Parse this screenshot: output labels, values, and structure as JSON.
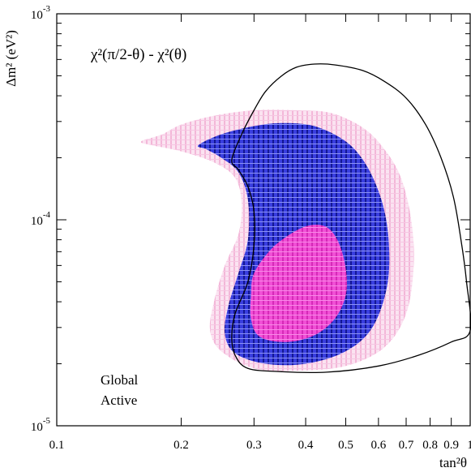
{
  "chart_data": {
    "type": "contour",
    "annotation": "χ²(π/2-θ) - χ²(θ)",
    "corner_label": [
      "Global",
      "Active"
    ],
    "xlabel": "tan²θ",
    "ylabel": "Δm² (eV²)",
    "x_scale": "log",
    "y_scale": "log",
    "xlim": [
      0.1,
      1.0
    ],
    "ylim": [
      1e-05,
      0.001
    ],
    "x_ticks": [
      {
        "value": 0.1,
        "label": "0.1"
      },
      {
        "value": 0.2,
        "label": "0.2"
      },
      {
        "value": 0.3,
        "label": "0.3"
      },
      {
        "value": 0.4,
        "label": "0.4"
      },
      {
        "value": 0.5,
        "label": "0.5"
      },
      {
        "value": 0.6,
        "label": "0.6"
      },
      {
        "value": 0.7,
        "label": "0.7"
      },
      {
        "value": 0.8,
        "label": "0.8"
      },
      {
        "value": 0.9,
        "label": "0.9"
      },
      {
        "value": 1.0,
        "label": "1"
      }
    ],
    "y_ticks": [
      {
        "value": 1e-05,
        "base": "10",
        "exp": "-5"
      },
      {
        "value": 0.0001,
        "base": "10",
        "exp": "-4"
      },
      {
        "value": 0.001,
        "base": "10",
        "exp": "-3"
      }
    ],
    "grid": false,
    "regions": [
      {
        "fill": "#f7c6e0",
        "points": [
          [
            0.16,
            0.00024
          ],
          [
            0.18,
            0.00026
          ],
          [
            0.2,
            0.00029
          ],
          [
            0.24,
            0.00032
          ],
          [
            0.3,
            0.00034
          ],
          [
            0.38,
            0.00034
          ],
          [
            0.46,
            0.00033
          ],
          [
            0.55,
            0.00028
          ],
          [
            0.62,
            0.00022
          ],
          [
            0.68,
            0.00016
          ],
          [
            0.72,
            0.0001
          ],
          [
            0.73,
            6e-05
          ],
          [
            0.7,
            3.5e-05
          ],
          [
            0.62,
            2.4e-05
          ],
          [
            0.5,
            1.95e-05
          ],
          [
            0.38,
            1.85e-05
          ],
          [
            0.3,
            1.9e-05
          ],
          [
            0.25,
            2.3e-05
          ],
          [
            0.235,
            2.9e-05
          ],
          [
            0.24,
            4e-05
          ],
          [
            0.255,
            6e-05
          ],
          [
            0.275,
            8.5e-05
          ],
          [
            0.28,
            0.00012
          ],
          [
            0.27,
            0.00016
          ],
          [
            0.24,
            0.00019
          ],
          [
            0.2,
            0.000215
          ],
          [
            0.17,
            0.00023
          ]
        ]
      },
      {
        "fill": "#2b2fd6",
        "points": [
          [
            0.22,
            0.00023
          ],
          [
            0.25,
            0.00026
          ],
          [
            0.3,
            0.000285
          ],
          [
            0.35,
            0.000295
          ],
          [
            0.42,
            0.000285
          ],
          [
            0.5,
            0.00024
          ],
          [
            0.56,
            0.000185
          ],
          [
            0.61,
            0.000125
          ],
          [
            0.635,
            8e-05
          ],
          [
            0.63,
            4.8e-05
          ],
          [
            0.58,
            3e-05
          ],
          [
            0.5,
            2.3e-05
          ],
          [
            0.4,
            2e-05
          ],
          [
            0.32,
            2e-05
          ],
          [
            0.27,
            2.25e-05
          ],
          [
            0.255,
            2.8e-05
          ],
          [
            0.26,
            3.8e-05
          ],
          [
            0.275,
            5.5e-05
          ],
          [
            0.29,
            8e-05
          ],
          [
            0.29,
            0.000125
          ],
          [
            0.275,
            0.00017
          ],
          [
            0.25,
            0.0002
          ],
          [
            0.23,
            0.00022
          ]
        ]
      },
      {
        "fill": "#ef3fcf",
        "points": [
          [
            0.3,
            5.5e-05
          ],
          [
            0.33,
            7.2e-05
          ],
          [
            0.37,
            8.6e-05
          ],
          [
            0.41,
            9.4e-05
          ],
          [
            0.45,
            9.2e-05
          ],
          [
            0.48,
            7.8e-05
          ],
          [
            0.5,
            5.8e-05
          ],
          [
            0.5,
            4.3e-05
          ],
          [
            0.47,
            3.3e-05
          ],
          [
            0.42,
            2.75e-05
          ],
          [
            0.36,
            2.55e-05
          ],
          [
            0.31,
            2.7e-05
          ],
          [
            0.295,
            3.3e-05
          ],
          [
            0.295,
            4.3e-05
          ]
        ]
      }
    ],
    "line": {
      "color": "#000000",
      "points": [
        [
          0.265,
          0.000195
        ],
        [
          0.28,
          0.00026
        ],
        [
          0.3,
          0.00034
        ],
        [
          0.32,
          0.00042
        ],
        [
          0.35,
          0.0005
        ],
        [
          0.38,
          0.00055
        ],
        [
          0.42,
          0.00057
        ],
        [
          0.47,
          0.000565
        ],
        [
          0.55,
          0.00053
        ],
        [
          0.62,
          0.00047
        ],
        [
          0.7,
          0.00039
        ],
        [
          0.78,
          0.00029
        ],
        [
          0.85,
          0.0002
        ],
        [
          0.91,
          0.00013
        ],
        [
          0.95,
          8e-05
        ],
        [
          0.98,
          5e-05
        ],
        [
          1.0,
          2.9e-05
        ],
        [
          0.9,
          2.55e-05
        ],
        [
          0.75,
          2.2e-05
        ],
        [
          0.6,
          1.95e-05
        ],
        [
          0.45,
          1.82e-05
        ],
        [
          0.35,
          1.83e-05
        ],
        [
          0.29,
          1.9e-05
        ],
        [
          0.27,
          2.2e-05
        ],
        [
          0.265,
          2.7e-05
        ],
        [
          0.27,
          3.5e-05
        ],
        [
          0.29,
          5e-05
        ],
        [
          0.3,
          7.5e-05
        ],
        [
          0.3,
          0.00011
        ],
        [
          0.29,
          0.000145
        ],
        [
          0.275,
          0.000175
        ],
        [
          0.265,
          0.000195
        ]
      ]
    }
  }
}
